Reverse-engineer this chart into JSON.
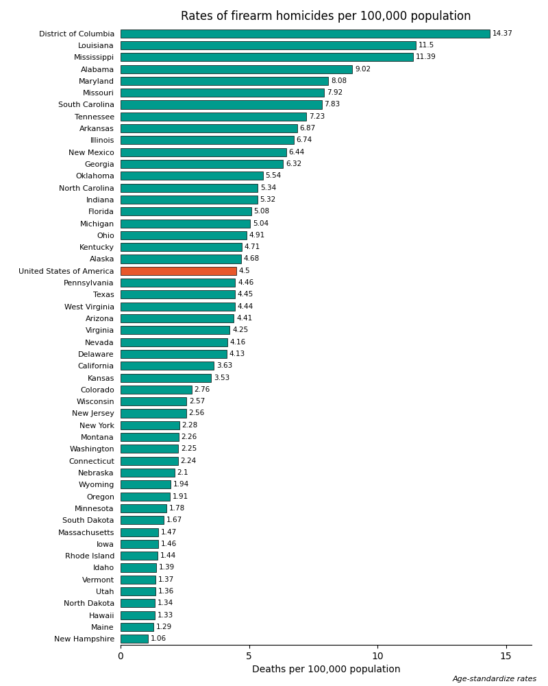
{
  "title": "Rates of firearm homicides per 100,000 population",
  "xlabel": "Deaths per 100,000 population",
  "footnote": "Age-standardize rates",
  "bar_color_default": "#009B8D",
  "bar_color_highlight": "#E8572A",
  "highlight_label": "United States of America",
  "categories": [
    "District of Columbia",
    "Louisiana",
    "Mississippi",
    "Alabama",
    "Maryland",
    "Missouri",
    "South Carolina",
    "Tennessee",
    "Arkansas",
    "Illinois",
    "New Mexico",
    "Georgia",
    "Oklahoma",
    "North Carolina",
    "Indiana",
    "Florida",
    "Michigan",
    "Ohio",
    "Kentucky",
    "Alaska",
    "United States of America",
    "Pennsylvania",
    "Texas",
    "West Virginia",
    "Arizona",
    "Virginia",
    "Nevada",
    "Delaware",
    "California",
    "Kansas",
    "Colorado",
    "Wisconsin",
    "New Jersey",
    "New York",
    "Montana",
    "Washington",
    "Connecticut",
    "Nebraska",
    "Wyoming",
    "Oregon",
    "Minnesota",
    "South Dakota",
    "Massachusetts",
    "Iowa",
    "Rhode Island",
    "Idaho",
    "Vermont",
    "Utah",
    "North Dakota",
    "Hawaii",
    "Maine",
    "New Hampshire"
  ],
  "values": [
    14.37,
    11.5,
    11.39,
    9.02,
    8.08,
    7.92,
    7.83,
    7.23,
    6.87,
    6.74,
    6.44,
    6.32,
    5.54,
    5.34,
    5.32,
    5.08,
    5.04,
    4.91,
    4.71,
    4.68,
    4.5,
    4.46,
    4.45,
    4.44,
    4.41,
    4.25,
    4.16,
    4.13,
    3.63,
    3.53,
    2.76,
    2.57,
    2.56,
    2.28,
    2.26,
    2.25,
    2.24,
    2.1,
    1.94,
    1.91,
    1.78,
    1.67,
    1.47,
    1.46,
    1.44,
    1.39,
    1.37,
    1.36,
    1.34,
    1.33,
    1.29,
    1.06
  ],
  "xlim": [
    0,
    16
  ],
  "xticks": [
    0,
    5,
    10,
    15
  ],
  "figsize": [
    8.0,
    10.0
  ],
  "dpi": 100,
  "bar_height": 0.7,
  "label_fontsize": 7.5,
  "ytick_fontsize": 8,
  "title_fontsize": 12,
  "xlabel_fontsize": 10,
  "footnote_fontsize": 8
}
